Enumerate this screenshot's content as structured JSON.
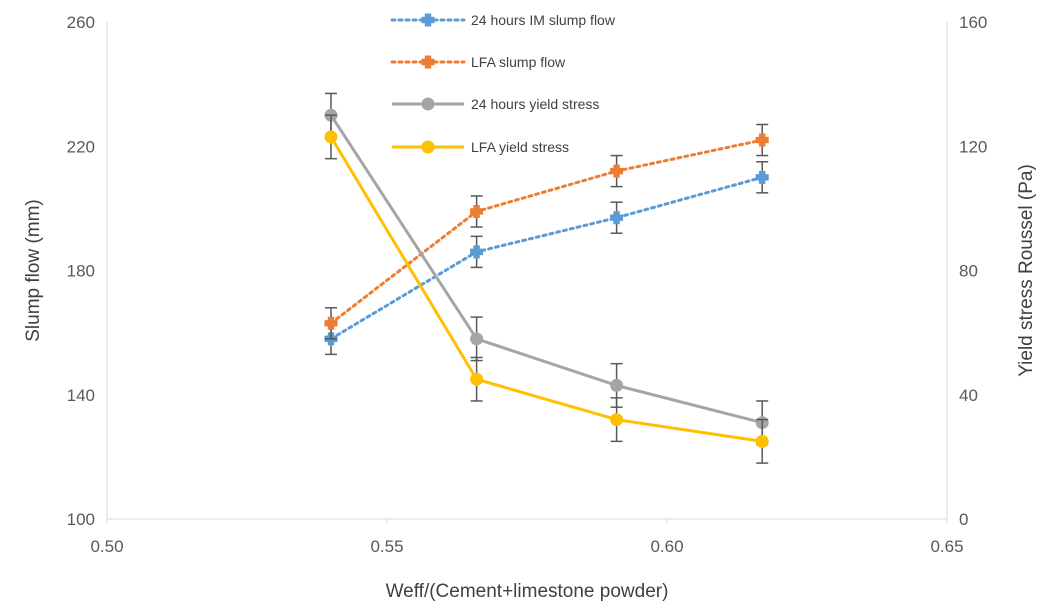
{
  "chart_data": {
    "type": "line",
    "xlabel": "Weff/(Cement+limestone powder)",
    "ylabel": "Slump flow (mm)",
    "y2label": "Yield stress Roussel (Pa)",
    "xlim": [
      0.5,
      0.65
    ],
    "ylim": [
      100,
      260
    ],
    "y2lim": [
      0,
      160
    ],
    "x_ticks": [
      "0.50",
      "0.55",
      "0.60",
      "0.65"
    ],
    "y_ticks": [
      "100",
      "140",
      "180",
      "220",
      "260"
    ],
    "y2_ticks": [
      "0",
      "40",
      "80",
      "120",
      "160"
    ],
    "grid": false,
    "legend_position": "top-center",
    "x": [
      0.54,
      0.566,
      0.591,
      0.617
    ],
    "series": [
      {
        "name": "24 hours IM slump flow",
        "axis": "left",
        "style": "dotted",
        "marker": "plus",
        "color": "#5B9BD5",
        "values": [
          158,
          186,
          197,
          210
        ],
        "error": [
          5,
          5,
          5,
          5
        ]
      },
      {
        "name": "LFA slump flow",
        "axis": "left",
        "style": "dotted",
        "marker": "plus",
        "color": "#ED7D31",
        "values": [
          163,
          199,
          212,
          222
        ],
        "error": [
          5,
          5,
          5,
          5
        ]
      },
      {
        "name": "24 hours yield stress",
        "axis": "right",
        "style": "solid",
        "marker": "circle",
        "color": "#A5A5A5",
        "values": [
          130,
          58,
          43,
          31
        ],
        "error": [
          7,
          7,
          7,
          7
        ]
      },
      {
        "name": "LFA yield stress",
        "axis": "right",
        "style": "solid",
        "marker": "circle",
        "color": "#FFC000",
        "values": [
          123,
          45,
          32,
          25
        ],
        "error": [
          7,
          7,
          7,
          7
        ]
      }
    ]
  }
}
